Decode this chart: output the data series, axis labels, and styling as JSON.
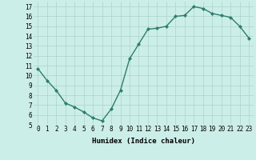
{
  "x": [
    0,
    1,
    2,
    3,
    4,
    5,
    6,
    7,
    8,
    9,
    10,
    11,
    12,
    13,
    14,
    15,
    16,
    17,
    18,
    19,
    20,
    21,
    22,
    23
  ],
  "y": [
    10.7,
    9.5,
    8.5,
    7.2,
    6.8,
    6.3,
    5.7,
    5.4,
    6.6,
    8.5,
    11.7,
    13.2,
    14.7,
    14.8,
    15.0,
    16.0,
    16.1,
    17.0,
    16.8,
    16.3,
    16.1,
    15.9,
    15.0,
    13.8
  ],
  "line_color": "#2e7d6e",
  "marker": "D",
  "marker_size": 2.0,
  "bg_color": "#cceee8",
  "grid_color": "#aad4cc",
  "xlabel": "Humidex (Indice chaleur)",
  "ylim": [
    5,
    17.5
  ],
  "xlim": [
    -0.5,
    23.5
  ],
  "yticks": [
    5,
    6,
    7,
    8,
    9,
    10,
    11,
    12,
    13,
    14,
    15,
    16,
    17
  ],
  "xticks": [
    0,
    1,
    2,
    3,
    4,
    5,
    6,
    7,
    8,
    9,
    10,
    11,
    12,
    13,
    14,
    15,
    16,
    17,
    18,
    19,
    20,
    21,
    22,
    23
  ],
  "tick_fontsize": 5.5,
  "xlabel_fontsize": 6.5,
  "linewidth": 1.0
}
